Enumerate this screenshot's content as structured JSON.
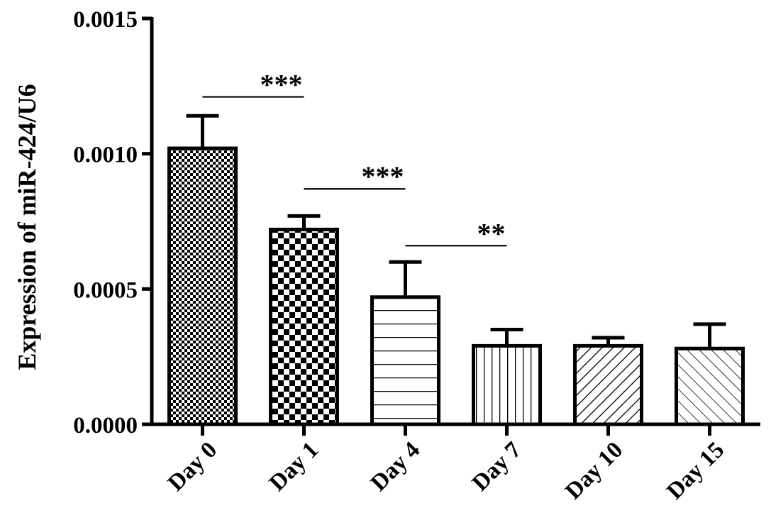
{
  "chart_data": {
    "type": "bar",
    "categories": [
      "Day 0",
      "Day 1",
      "Day 4",
      "Day 7",
      "Day 10",
      "Day 15"
    ],
    "values": [
      0.00102,
      0.00072,
      0.00047,
      0.00029,
      0.00029,
      0.00028
    ],
    "error_upper": [
      0.00114,
      0.00077,
      0.0006,
      0.00035,
      0.00032,
      0.00037
    ],
    "patterns": [
      "fine-checker",
      "checker",
      "horizontal",
      "vertical",
      "diagonal-right",
      "diagonal-left"
    ],
    "ylabel": "Expression of miR-424/U6",
    "xlabel": "",
    "ylim": [
      0,
      0.0015
    ],
    "yticks": [
      "0.0000",
      "0.0005",
      "0.0010",
      "0.0015"
    ],
    "ytick_values": [
      0,
      0.0005,
      0.001,
      0.0015
    ],
    "grid": false,
    "bar_color": "#000000",
    "significance": [
      {
        "from": "Day 0",
        "to": "Day 1",
        "y": 0.00121,
        "label": "***"
      },
      {
        "from": "Day 1",
        "to": "Day 4",
        "y": 0.00087,
        "label": "***"
      },
      {
        "from": "Day 4",
        "to": "Day 7",
        "y": 0.00066,
        "label": "**"
      }
    ]
  }
}
